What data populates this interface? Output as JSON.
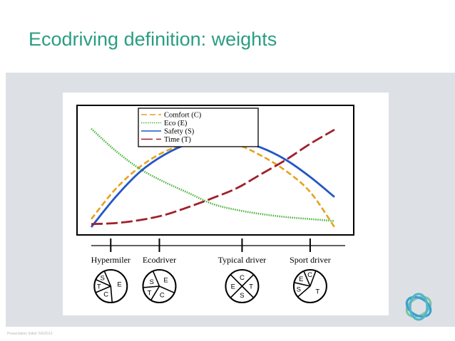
{
  "slide": {
    "title": "Ecodriving definition: weights",
    "footer": "Presentation Initial: 5/6/2013"
  },
  "colors": {
    "title": "#2a9d83",
    "comfort": "#e5a21c",
    "eco": "#4bb33c",
    "safety": "#2457c5",
    "time": "#a0202a",
    "band": "#dde1e5"
  },
  "chart_data": {
    "type": "line",
    "title": "",
    "xlabel": "",
    "ylabel": "",
    "grid": false,
    "legend_position": "top-center",
    "x_categories": [
      "Hypermiler",
      "Ecodriver",
      "Typical driver",
      "Sport driver"
    ],
    "x": [
      0,
      0.1,
      0.2,
      0.3,
      0.4,
      0.5,
      0.6,
      0.7,
      0.8,
      0.9,
      1
    ],
    "xlim": [
      0,
      1
    ],
    "ylim": [
      0,
      1
    ],
    "series": [
      {
        "name": "Comfort (C)",
        "key": "comfort",
        "style": "dashed",
        "values": [
          0.08,
          0.38,
          0.6,
          0.75,
          0.83,
          0.85,
          0.82,
          0.71,
          0.56,
          0.35,
          0.0
        ]
      },
      {
        "name": "Eco (E)",
        "key": "eco",
        "style": "dotted",
        "values": [
          0.98,
          0.76,
          0.58,
          0.45,
          0.34,
          0.23,
          0.17,
          0.13,
          0.1,
          0.08,
          0.06
        ]
      },
      {
        "name": "Safety (S)",
        "key": "safety",
        "style": "dotted-blue",
        "values": [
          0.0,
          0.3,
          0.55,
          0.72,
          0.83,
          0.87,
          0.86,
          0.79,
          0.67,
          0.5,
          0.3
        ]
      },
      {
        "name": "Time (T)",
        "key": "time",
        "style": "longdash",
        "values": [
          0.03,
          0.04,
          0.07,
          0.12,
          0.2,
          0.29,
          0.39,
          0.53,
          0.67,
          0.83,
          0.97
        ]
      }
    ],
    "driver_types": [
      {
        "name": "Hypermiler",
        "position": 0.08,
        "pie": [
          {
            "label": "E",
            "weight": 0.55
          },
          {
            "label": "C",
            "weight": 0.2
          },
          {
            "label": "T",
            "weight": 0.13
          },
          {
            "label": "S",
            "weight": 0.12
          }
        ]
      },
      {
        "name": "Ecodriver",
        "position": 0.28,
        "pie": [
          {
            "label": "E",
            "weight": 0.38
          },
          {
            "label": "C",
            "weight": 0.27
          },
          {
            "label": "T",
            "weight": 0.15
          },
          {
            "label": "S",
            "weight": 0.2
          }
        ]
      },
      {
        "name": "Typical driver",
        "position": 0.62,
        "pie": [
          {
            "label": "C",
            "weight": 0.25
          },
          {
            "label": "T",
            "weight": 0.25
          },
          {
            "label": "S",
            "weight": 0.25
          },
          {
            "label": "E",
            "weight": 0.25
          }
        ]
      },
      {
        "name": "Sport driver",
        "position": 0.9,
        "pie": [
          {
            "label": "C",
            "weight": 0.12
          },
          {
            "label": "T",
            "weight": 0.58
          },
          {
            "label": "S",
            "weight": 0.15
          },
          {
            "label": "E",
            "weight": 0.15
          }
        ]
      }
    ]
  }
}
